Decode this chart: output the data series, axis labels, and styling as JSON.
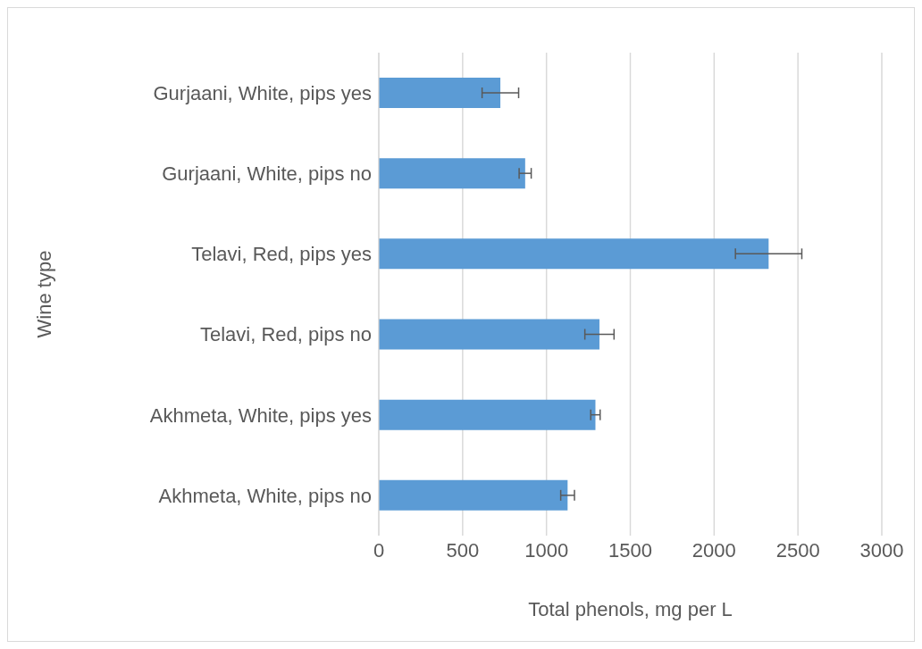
{
  "chart_data": {
    "type": "bar",
    "orientation": "horizontal",
    "xlabel": "Total phenols, mg per L",
    "ylabel": "Wine type",
    "categories": [
      "Gurjaani, White, pips yes",
      "Gurjaani, White, pips no",
      "Telavi, Red, pips yes",
      "Telavi, Red, pips no",
      "Akhmeta, White, pips yes",
      "Akhmeta, White, pips no"
    ],
    "values": [
      725,
      873,
      2325,
      1316,
      1292,
      1126
    ],
    "errors": [
      109,
      36,
      198,
      87,
      28,
      41
    ],
    "color": "#5b9bd5",
    "xlim": [
      0,
      3000
    ],
    "xticks": [
      0,
      500,
      1000,
      1500,
      2000,
      2500,
      3000
    ],
    "grid": "x",
    "legend": false
  }
}
